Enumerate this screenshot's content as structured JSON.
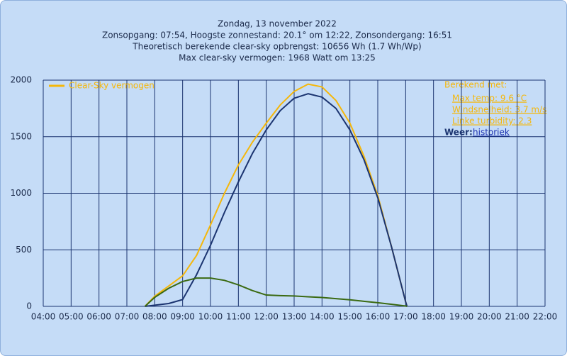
{
  "chart_data": {
    "type": "line",
    "title": "Zondag, 13 november 2022",
    "subtitle": [
      "Zonsopgang: 07:54, Hoogste zonnestand: 20.1° om 12:22, Zonsondergang: 16:51",
      "Theoretisch berekende clear-sky opbrengst: 10656 Wh (1.7 Wh/Wp)",
      "Max clear-sky vermogen: 1968 Watt om 13:25"
    ],
    "x": [
      7.65,
      8,
      8.5,
      9,
      9.5,
      10,
      10.5,
      11,
      11.5,
      12,
      12.5,
      13,
      13.5,
      14,
      14.5,
      15,
      15.5,
      16,
      16.5,
      17,
      17.05
    ],
    "series": [
      {
        "name": "Clear-Sky vermogen",
        "color": "#f5b70a",
        "values": [
          0,
          90,
          180,
          270,
          450,
          720,
          1000,
          1250,
          1450,
          1620,
          1780,
          1900,
          1965,
          1940,
          1820,
          1620,
          1330,
          980,
          520,
          40,
          0
        ]
      },
      {
        "color": "#1b3470",
        "values": [
          0,
          10,
          25,
          60,
          280,
          540,
          830,
          1100,
          1350,
          1560,
          1730,
          1840,
          1880,
          1850,
          1750,
          1560,
          1300,
          960,
          520,
          40,
          0
        ]
      },
      {
        "color": "#3b6a12",
        "values": [
          0,
          80,
          160,
          220,
          250,
          250,
          230,
          190,
          140,
          100,
          95,
          92,
          85,
          78,
          68,
          58,
          45,
          32,
          18,
          3,
          0
        ]
      }
    ],
    "xlim": [
      4,
      22
    ],
    "xticks": [
      {
        "value": 4,
        "label": "04:00"
      },
      {
        "value": 5,
        "label": "05:00"
      },
      {
        "value": 6,
        "label": "06:00"
      },
      {
        "value": 7,
        "label": "07:00"
      },
      {
        "value": 8,
        "label": "08:00"
      },
      {
        "value": 9,
        "label": "09:00"
      },
      {
        "value": 10,
        "label": "10:00"
      },
      {
        "value": 11,
        "label": "11:00"
      },
      {
        "value": 12,
        "label": "12:00"
      },
      {
        "value": 13,
        "label": "13:00"
      },
      {
        "value": 14,
        "label": "14:00"
      },
      {
        "value": 15,
        "label": "15:00"
      },
      {
        "value": 16,
        "label": "16:00"
      },
      {
        "value": 17,
        "label": "17:00"
      },
      {
        "value": 18,
        "label": "18:00"
      },
      {
        "value": 19,
        "label": "19:00"
      },
      {
        "value": 20,
        "label": "20:00"
      },
      {
        "value": 21,
        "label": "21:00"
      },
      {
        "value": 22,
        "label": "22:00"
      }
    ],
    "ylim": [
      0,
      2000
    ],
    "yticks": [
      0,
      500,
      1000,
      1500,
      2000
    ],
    "grid": true,
    "legend": "top-left",
    "info": {
      "heading": "Berekend met:",
      "items": [
        "Max temp: 9.6 °C",
        "Windsnelheid: 3.7 m/s",
        "Linke turbidity: 2.3"
      ],
      "weather_label": "Weer:",
      "weather_link": "historiek"
    }
  }
}
